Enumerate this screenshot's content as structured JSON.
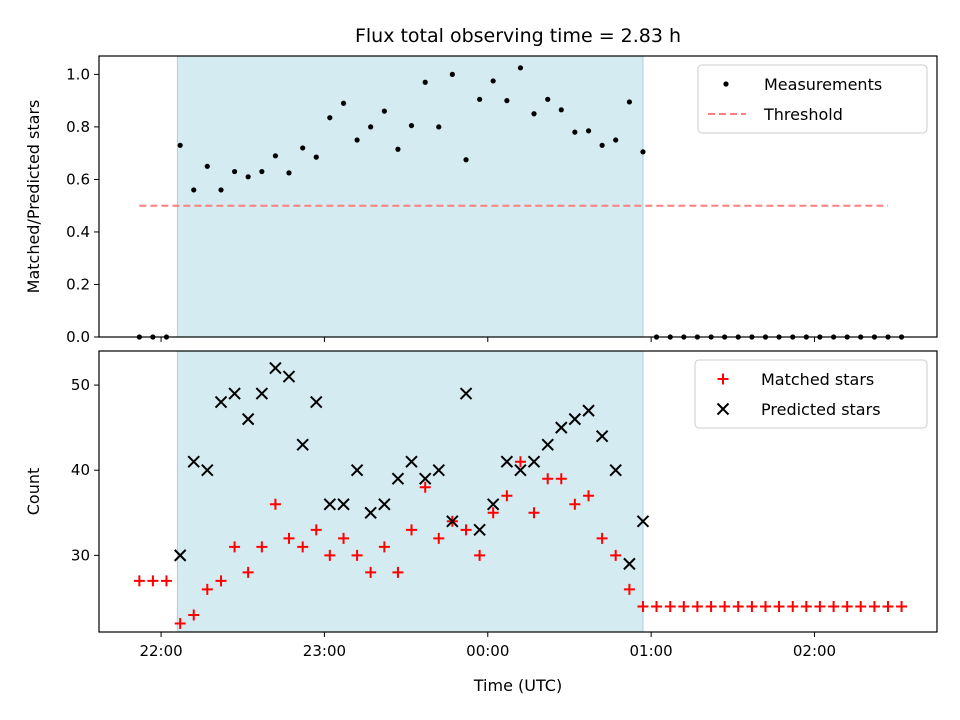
{
  "chart_data": {
    "title": "Flux total observing time = 2.83 h",
    "xlabel": "Time (UTC)",
    "x_units": "hours since 00:00 UTC (negative = before midnight of the previous day)",
    "x_ticks": [
      {
        "value": -2,
        "label": "22:00"
      },
      {
        "value": -1,
        "label": "23:00"
      },
      {
        "value": 0,
        "label": "00:00"
      },
      {
        "value": 1,
        "label": "01:00"
      },
      {
        "value": 2,
        "label": "02:00"
      }
    ],
    "xlim": [
      -2.38,
      2.75
    ],
    "observing_window": {
      "start": -1.9,
      "end": 0.95,
      "color": "#d4ebf1"
    },
    "panels": [
      {
        "id": "ratio",
        "type": "scatter",
        "ylabel": "Matched/Predicted stars",
        "ylim": [
          0.0,
          1.07
        ],
        "y_ticks": [
          {
            "value": 0.0,
            "label": "0.0"
          },
          {
            "value": 0.2,
            "label": "0.2"
          },
          {
            "value": 0.4,
            "label": "0.4"
          },
          {
            "value": 0.6,
            "label": "0.6"
          },
          {
            "value": 0.8,
            "label": "0.8"
          },
          {
            "value": 1.0,
            "label": "1.0"
          }
        ],
        "legend": {
          "position": "top-right"
        },
        "series": [
          {
            "name": "Measurements",
            "marker": "dot",
            "color": "#000000",
            "points": [
              [
                -2.133,
                0.0
              ],
              [
                -2.05,
                0.0
              ],
              [
                -1.967,
                0.0
              ],
              [
                -1.883,
                0.73
              ],
              [
                -1.8,
                0.56
              ],
              [
                -1.717,
                0.65
              ],
              [
                -1.633,
                0.56
              ],
              [
                -1.55,
                0.63
              ],
              [
                -1.467,
                0.61
              ],
              [
                -1.383,
                0.63
              ],
              [
                -1.3,
                0.69
              ],
              [
                -1.217,
                0.625
              ],
              [
                -1.133,
                0.72
              ],
              [
                -1.05,
                0.685
              ],
              [
                -0.967,
                0.835
              ],
              [
                -0.883,
                0.89
              ],
              [
                -0.8,
                0.75
              ],
              [
                -0.717,
                0.8
              ],
              [
                -0.633,
                0.86
              ],
              [
                -0.55,
                0.715
              ],
              [
                -0.467,
                0.805
              ],
              [
                -0.383,
                0.97
              ],
              [
                -0.3,
                0.8
              ],
              [
                -0.217,
                1.0
              ],
              [
                -0.133,
                0.675
              ],
              [
                -0.05,
                0.905
              ],
              [
                0.033,
                0.975
              ],
              [
                0.117,
                0.9
              ],
              [
                0.2,
                1.025
              ],
              [
                0.283,
                0.85
              ],
              [
                0.367,
                0.905
              ],
              [
                0.45,
                0.865
              ],
              [
                0.533,
                0.78
              ],
              [
                0.617,
                0.785
              ],
              [
                0.7,
                0.73
              ],
              [
                0.783,
                0.75
              ],
              [
                0.867,
                0.895
              ],
              [
                0.95,
                0.705
              ],
              [
                1.033,
                0.0
              ],
              [
                1.117,
                0.0
              ],
              [
                1.2,
                0.0
              ],
              [
                1.283,
                0.0
              ],
              [
                1.367,
                0.0
              ],
              [
                1.45,
                0.0
              ],
              [
                1.533,
                0.0
              ],
              [
                1.617,
                0.0
              ],
              [
                1.7,
                0.0
              ],
              [
                1.783,
                0.0
              ],
              [
                1.867,
                0.0
              ],
              [
                1.95,
                0.0
              ],
              [
                2.033,
                0.0
              ],
              [
                2.117,
                0.0
              ],
              [
                2.2,
                0.0
              ],
              [
                2.283,
                0.0
              ],
              [
                2.367,
                0.0
              ],
              [
                2.45,
                0.0
              ],
              [
                2.533,
                0.0
              ]
            ]
          },
          {
            "name": "Threshold",
            "type": "line",
            "style": "dashed",
            "color": "#ff7f7f",
            "points": [
              [
                -2.133,
                0.5
              ],
              [
                2.45,
                0.5
              ]
            ]
          }
        ]
      },
      {
        "id": "counts",
        "type": "scatter",
        "ylabel": "Count",
        "ylim": [
          21,
          54
        ],
        "y_ticks": [
          {
            "value": 30,
            "label": "30"
          },
          {
            "value": 40,
            "label": "40"
          },
          {
            "value": 50,
            "label": "50"
          }
        ],
        "legend": {
          "position": "top-right"
        },
        "series": [
          {
            "name": "Matched stars",
            "marker": "plus",
            "color": "#ff0000",
            "points": [
              [
                -2.133,
                27
              ],
              [
                -2.05,
                27
              ],
              [
                -1.967,
                27
              ],
              [
                -1.883,
                22
              ],
              [
                -1.8,
                23
              ],
              [
                -1.717,
                26
              ],
              [
                -1.633,
                27
              ],
              [
                -1.55,
                31
              ],
              [
                -1.467,
                28
              ],
              [
                -1.383,
                31
              ],
              [
                -1.3,
                36
              ],
              [
                -1.217,
                32
              ],
              [
                -1.133,
                31
              ],
              [
                -1.05,
                33
              ],
              [
                -0.967,
                30
              ],
              [
                -0.883,
                32
              ],
              [
                -0.8,
                30
              ],
              [
                -0.717,
                28
              ],
              [
                -0.633,
                31
              ],
              [
                -0.55,
                28
              ],
              [
                -0.467,
                33
              ],
              [
                -0.383,
                38
              ],
              [
                -0.3,
                32
              ],
              [
                -0.217,
                34
              ],
              [
                -0.133,
                33
              ],
              [
                -0.05,
                30
              ],
              [
                0.033,
                35
              ],
              [
                0.117,
                37
              ],
              [
                0.2,
                41
              ],
              [
                0.283,
                35
              ],
              [
                0.367,
                39
              ],
              [
                0.45,
                39
              ],
              [
                0.533,
                36
              ],
              [
                0.617,
                37
              ],
              [
                0.7,
                32
              ],
              [
                0.783,
                30
              ],
              [
                0.867,
                26
              ],
              [
                0.95,
                24
              ],
              [
                1.033,
                24
              ],
              [
                1.117,
                24
              ],
              [
                1.2,
                24
              ],
              [
                1.283,
                24
              ],
              [
                1.367,
                24
              ],
              [
                1.45,
                24
              ],
              [
                1.533,
                24
              ],
              [
                1.617,
                24
              ],
              [
                1.7,
                24
              ],
              [
                1.783,
                24
              ],
              [
                1.867,
                24
              ],
              [
                1.95,
                24
              ],
              [
                2.033,
                24
              ],
              [
                2.117,
                24
              ],
              [
                2.2,
                24
              ],
              [
                2.283,
                24
              ],
              [
                2.367,
                24
              ],
              [
                2.45,
                24
              ],
              [
                2.533,
                24
              ]
            ]
          },
          {
            "name": "Predicted stars",
            "marker": "x",
            "color": "#000000",
            "points": [
              [
                -1.883,
                30
              ],
              [
                -1.8,
                41
              ],
              [
                -1.717,
                40
              ],
              [
                -1.633,
                48
              ],
              [
                -1.55,
                49
              ],
              [
                -1.467,
                46
              ],
              [
                -1.383,
                49
              ],
              [
                -1.3,
                52
              ],
              [
                -1.217,
                51
              ],
              [
                -1.133,
                43
              ],
              [
                -1.05,
                48
              ],
              [
                -0.967,
                36
              ],
              [
                -0.883,
                36
              ],
              [
                -0.8,
                40
              ],
              [
                -0.717,
                35
              ],
              [
                -0.633,
                36
              ],
              [
                -0.55,
                39
              ],
              [
                -0.467,
                41
              ],
              [
                -0.383,
                39
              ],
              [
                -0.3,
                40
              ],
              [
                -0.217,
                34
              ],
              [
                -0.133,
                49
              ],
              [
                -0.05,
                33
              ],
              [
                0.033,
                36
              ],
              [
                0.117,
                41
              ],
              [
                0.2,
                40
              ],
              [
                0.283,
                41
              ],
              [
                0.367,
                43
              ],
              [
                0.45,
                45
              ],
              [
                0.533,
                46
              ],
              [
                0.617,
                47
              ],
              [
                0.7,
                44
              ],
              [
                0.783,
                40
              ],
              [
                0.867,
                29
              ],
              [
                0.95,
                34
              ]
            ]
          }
        ]
      }
    ]
  }
}
